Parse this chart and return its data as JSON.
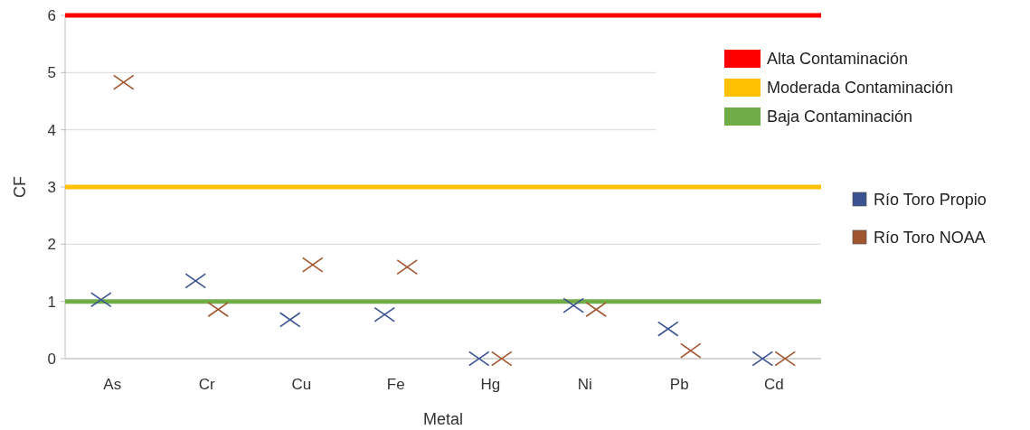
{
  "chart_data": {
    "type": "scatter",
    "xlabel": "Metal",
    "ylabel": "CF",
    "categories": [
      "As",
      "Cr",
      "Cu",
      "Fe",
      "Hg",
      "Ni",
      "Pb",
      "Cd"
    ],
    "series": [
      {
        "name": "Río Toro Propio",
        "color": "#3b5290",
        "values": [
          1.03,
          1.36,
          0.68,
          0.77,
          0,
          0.93,
          0.52,
          0
        ]
      },
      {
        "name": "Río Toro NOAA",
        "color": "#a0552e",
        "values": [
          4.83,
          0.86,
          1.64,
          1.6,
          0,
          0.86,
          0.14,
          0
        ]
      }
    ],
    "ylim": [
      0,
      6
    ],
    "yticks": [
      0,
      1,
      2,
      3,
      4,
      5,
      6
    ],
    "grid": "y",
    "marker": "cross",
    "legend": "right",
    "ref_lines": [
      {
        "axis": "y",
        "value": 6,
        "label": "Alta Contaminación",
        "color": "#ff0000"
      },
      {
        "axis": "y",
        "value": 3,
        "label": "Moderada Contaminación",
        "color": "#ffc000"
      },
      {
        "axis": "y",
        "value": 1,
        "label": "Baja Contaminación",
        "color": "#70ad47"
      }
    ]
  }
}
